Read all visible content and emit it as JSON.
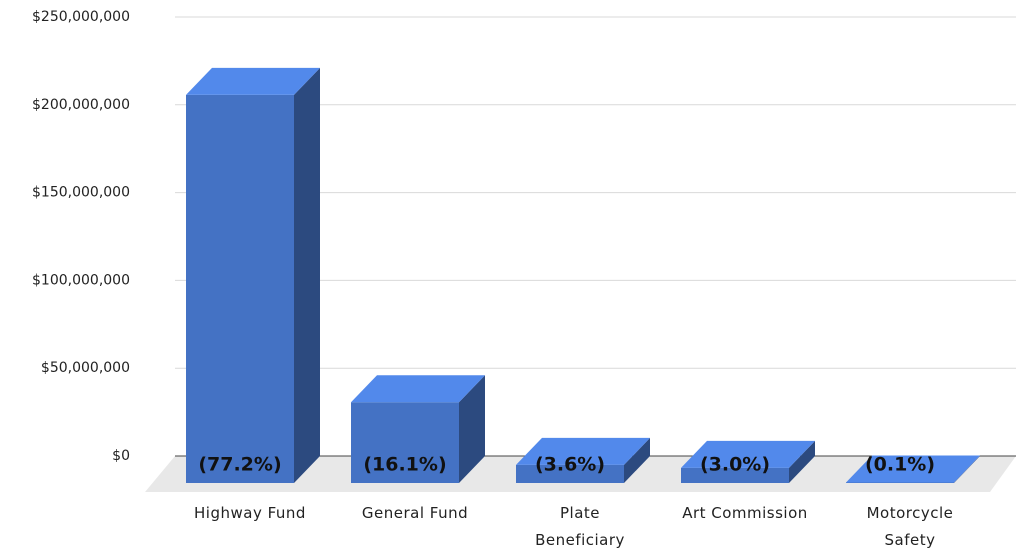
{
  "chart_data": {
    "type": "bar3d",
    "categories": [
      "Highway Fund",
      "General Fund",
      "Plate\nBeneficiary",
      "Art Commission",
      "Motorcycle\nSafety"
    ],
    "values": [
      221000000,
      46000000,
      10300000,
      8600000,
      290000
    ],
    "share_labels": [
      "(77.2%)",
      "(16.1%)",
      "(3.6%)",
      "(3.0%)",
      "(0.1%)"
    ],
    "color": "#4472c4",
    "ylim": [
      0,
      250000000
    ],
    "yticks": [
      {
        "value": 0,
        "label": "$0"
      },
      {
        "value": 50000000,
        "label": "$50,000,000"
      },
      {
        "value": 100000000,
        "label": "$100,000,000"
      },
      {
        "value": 150000000,
        "label": "$150,000,000"
      },
      {
        "value": 200000000,
        "label": "$200,000,000"
      },
      {
        "value": 250000000,
        "label": "$250,000,000"
      }
    ],
    "grid": true
  }
}
